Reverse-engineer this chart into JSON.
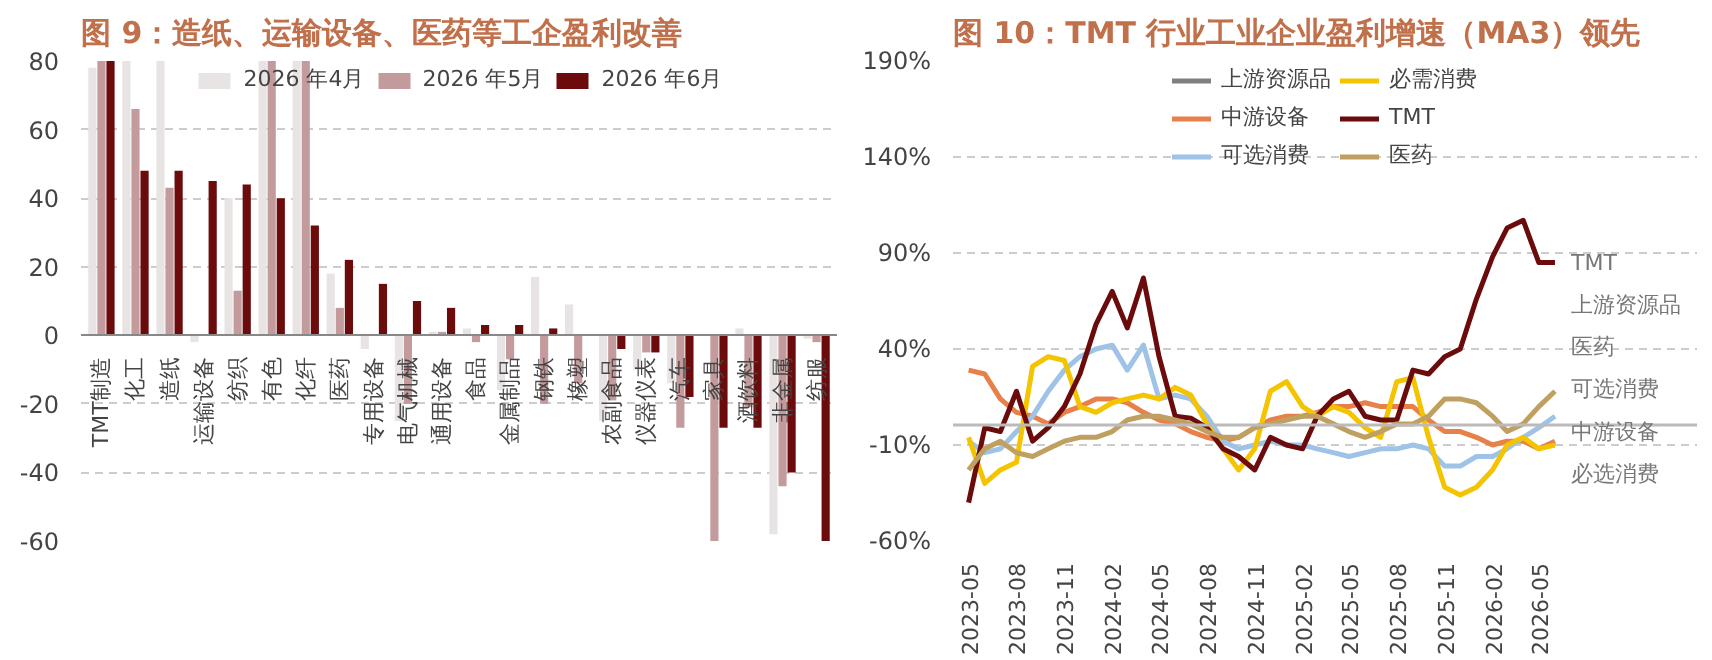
{
  "chart_data": [
    {
      "type": "bar",
      "title": "图 9：造纸、运输设备、医药等工企盈利改善",
      "categories": [
        "TMT制造",
        "化工",
        "造纸",
        "运输设备",
        "纺织",
        "有色",
        "化纤",
        "医药",
        "专用设备",
        "电气机械",
        "通用设备",
        "食品",
        "金属制品",
        "钢铁",
        "橡塑",
        "农副食品",
        "仪器仪表",
        "汽车",
        "家具",
        "酒饮料",
        "非金属",
        "纺服"
      ],
      "series": [
        {
          "name": "2026 年4月",
          "color": "#e9e4e4",
          "values": [
            78,
            80,
            80,
            -2,
            40,
            80,
            80,
            18,
            -4,
            -25,
            1,
            2,
            -16,
            17,
            9,
            -25,
            -10,
            -14,
            0,
            2,
            -58,
            -1
          ]
        },
        {
          "name": "2026 年5月",
          "color": "#c39b9d",
          "values": [
            80,
            66,
            43,
            0,
            13,
            80,
            80,
            8,
            0,
            -20,
            1,
            -2,
            -7,
            -20,
            -14,
            -19,
            -5,
            -27,
            -60,
            -21,
            -44,
            -2
          ]
        },
        {
          "name": "2026 年6月",
          "color": "#6b0b0b",
          "values": [
            80,
            48,
            48,
            45,
            44,
            40,
            32,
            22,
            15,
            10,
            8,
            3,
            3,
            2,
            null,
            -4,
            -5,
            -18,
            -27,
            -27,
            -40,
            -60
          ]
        }
      ],
      "ylim": [
        -60,
        80
      ],
      "yticks": [
        -60,
        -40,
        -20,
        0,
        20,
        40,
        60,
        80
      ],
      "grid": "y",
      "legend": "top"
    },
    {
      "type": "line",
      "title": "图 10：TMT 行业工业企业盈利增速（MA3）领先",
      "x": [
        "2023-05",
        "2023-06",
        "2023-07",
        "2023-08",
        "2023-09",
        "2023-10",
        "2023-11",
        "2023-12",
        "2024-01",
        "2024-02",
        "2024-03",
        "2024-04",
        "2024-05",
        "2024-06",
        "2024-07",
        "2024-08",
        "2024-09",
        "2024-10",
        "2024-11",
        "2024-12",
        "2025-01",
        "2025-02",
        "2025-03",
        "2025-04",
        "2025-05",
        "2025-06",
        "2025-07",
        "2025-08",
        "2025-09",
        "2025-10",
        "2025-11",
        "2025-12",
        "2026-01",
        "2026-02",
        "2026-03",
        "2026-04",
        "2026-05",
        "2026-06"
      ],
      "series": [
        {
          "name": "上游资源品",
          "color": "#808080",
          "values": [
            null,
            null,
            null,
            null,
            null,
            null,
            null,
            null,
            null,
            null,
            null,
            null,
            null,
            null,
            null,
            null,
            null,
            null,
            null,
            null,
            null,
            null,
            null,
            null,
            null,
            null,
            null,
            null,
            null,
            null,
            null,
            null,
            null,
            null,
            null,
            null,
            null,
            null
          ]
        },
        {
          "name": "中游设备",
          "color": "#e8804a",
          "values": [
            29,
            27,
            14,
            7,
            5,
            1,
            7,
            10,
            14,
            14,
            12,
            7,
            3,
            1,
            -3,
            -6,
            -8,
            -6,
            -1,
            3,
            5,
            5,
            7,
            10,
            10,
            12,
            10,
            10,
            10,
            3,
            -3,
            -3,
            -6,
            -10,
            -8,
            -8,
            -12,
            -8
          ]
        },
        {
          "name": "可选消费",
          "color": "#9ec3e6",
          "values": [
            -8,
            -14,
            -12,
            -3,
            5,
            18,
            29,
            36,
            40,
            42,
            29,
            42,
            14,
            16,
            14,
            5,
            -8,
            -12,
            -10,
            -8,
            -10,
            -10,
            -12,
            -14,
            -16,
            -14,
            -12,
            -12,
            -10,
            -12,
            -21,
            -21,
            -16,
            -16,
            -12,
            -6,
            -1,
            5
          ]
        },
        {
          "name": "必需消费",
          "color": "#f5c400",
          "values": [
            -6,
            -30,
            -23,
            -19,
            31,
            36,
            34,
            10,
            7,
            12,
            14,
            16,
            14,
            20,
            16,
            1,
            -12,
            -23,
            -12,
            18,
            23,
            10,
            5,
            10,
            7,
            -1,
            -6,
            23,
            25,
            -6,
            -32,
            -36,
            -32,
            -23,
            -10,
            -6,
            -12,
            -10
          ]
        },
        {
          "name": "TMT",
          "color": "#6b0b0b",
          "values": [
            -40,
            -1,
            -3,
            18,
            -8,
            -1,
            10,
            27,
            53,
            70,
            51,
            77,
            36,
            5,
            4,
            -1,
            -12,
            -16,
            -23,
            -6,
            -10,
            -12,
            5,
            14,
            18,
            5,
            3,
            3,
            29,
            27,
            36,
            40,
            66,
            88,
            103,
            107,
            85,
            85
          ]
        },
        {
          "name": "医药",
          "color": "#c0a060",
          "values": [
            -23,
            -12,
            -8,
            -14,
            -16,
            -12,
            -8,
            -6,
            -6,
            -3,
            3,
            5,
            5,
            3,
            1,
            -3,
            -6,
            -6,
            -1,
            1,
            3,
            5,
            5,
            1,
            -3,
            -6,
            -3,
            1,
            1,
            5,
            14,
            14,
            12,
            5,
            -3,
            1,
            10,
            18
          ]
        }
      ],
      "xlim": [
        "2023-04",
        "2027-03"
      ],
      "xticks": [
        "2023-05",
        "2023-08",
        "2023-11",
        "2024-02",
        "2024-05",
        "2024-08",
        "2024-11",
        "2025-02",
        "2025-05",
        "2025-08",
        "2025-11",
        "2026-02",
        "2026-05"
      ],
      "ylim": [
        -60,
        190
      ],
      "yticks": [
        {
          "value": -60,
          "label": "-60%"
        },
        {
          "value": -10,
          "label": "-10%"
        },
        {
          "value": 40,
          "label": "40%"
        },
        {
          "value": 90,
          "label": "90%"
        },
        {
          "value": 140,
          "label": "140%"
        },
        {
          "value": 190,
          "label": "190%"
        }
      ],
      "grid": "y",
      "legend": "top",
      "annotations": [
        "TMT",
        "上游资源品",
        "医药",
        "可选消费",
        "中游设备",
        "必选消费"
      ]
    }
  ]
}
